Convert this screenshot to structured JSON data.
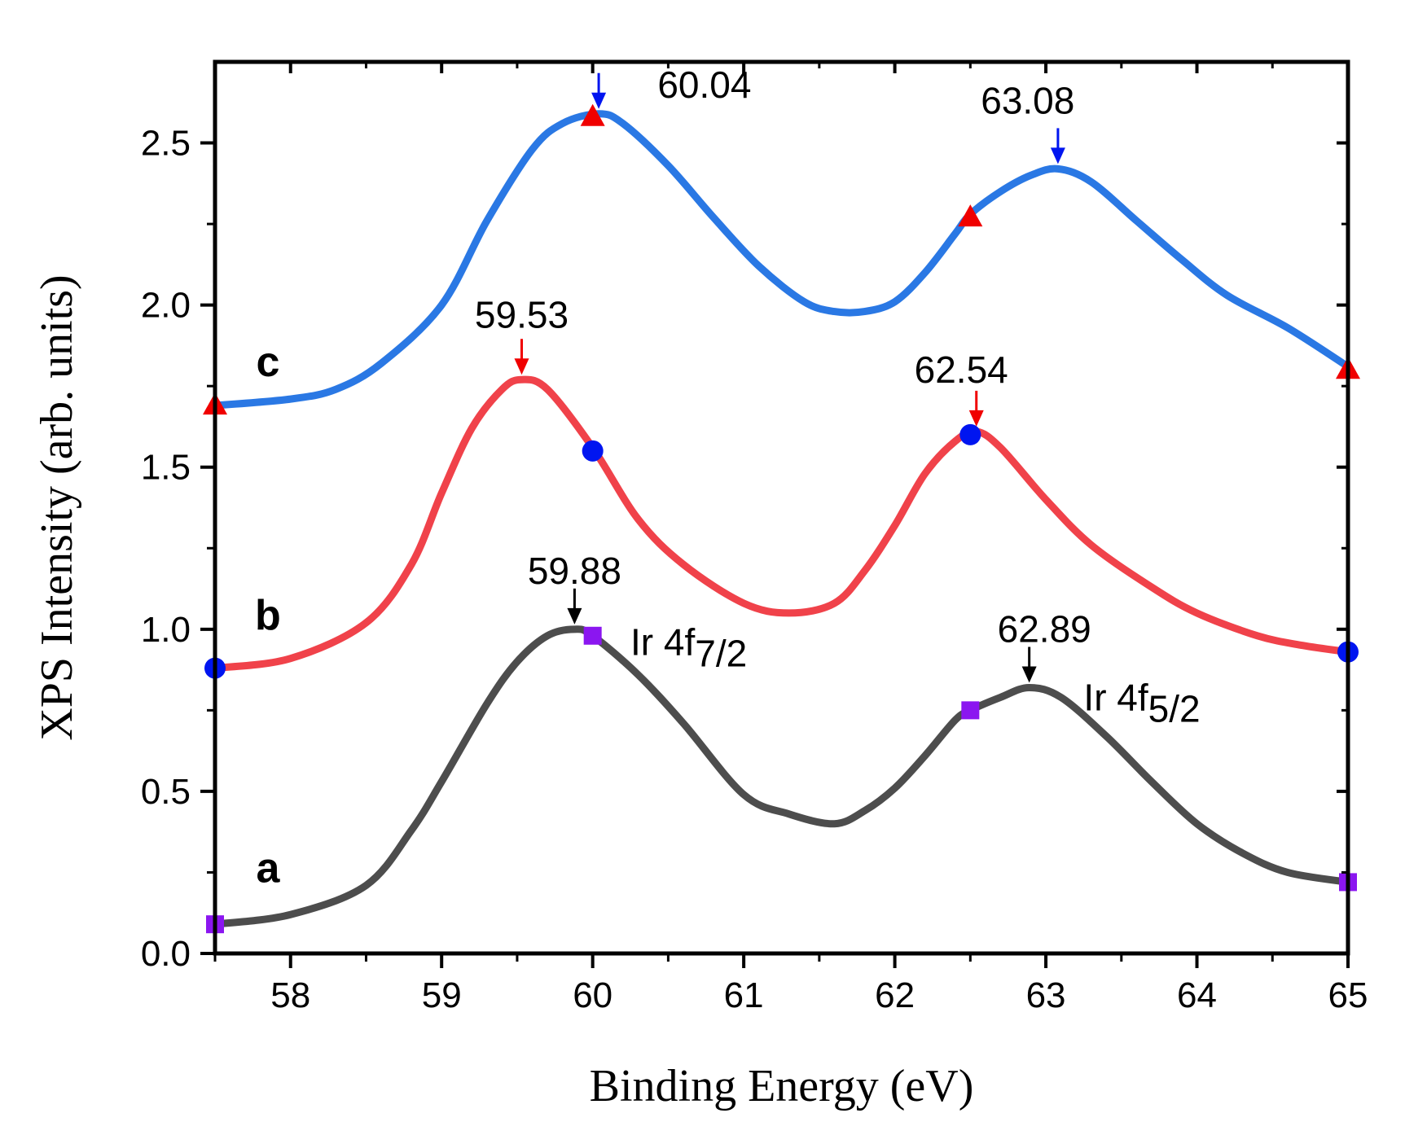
{
  "chart_data": {
    "type": "line",
    "xlabel": "Binding Energy (eV)",
    "ylabel": "XPS Intensity  (arb. units)",
    "xlim": [
      57.5,
      65
    ],
    "ylim": [
      0,
      2.75
    ],
    "xticks": [
      58,
      59,
      60,
      61,
      62,
      63,
      64,
      65
    ],
    "xtick_labels": [
      "58",
      "59",
      "60",
      "61",
      "62",
      "63",
      "64",
      "65"
    ],
    "yticks": [
      0,
      0.5,
      1.0,
      1.5,
      2.0,
      2.5
    ],
    "ytick_labels": [
      "0.0",
      "0.5",
      "1.0",
      "1.5",
      "2.0",
      "2.5"
    ],
    "series": [
      {
        "name": "a",
        "label": "a",
        "color": "#4d4d4d",
        "marker": "square",
        "marker_color": "#8b16f0",
        "label_pos": [
          57.85,
          0.22
        ],
        "x": [
          57.5,
          58.0,
          58.5,
          58.8,
          59.0,
          59.3,
          59.5,
          59.7,
          59.88,
          60.0,
          60.3,
          60.6,
          61.0,
          61.3,
          61.6,
          61.8,
          62.0,
          62.2,
          62.4,
          62.5,
          62.7,
          62.89,
          63.1,
          63.4,
          63.7,
          64.0,
          64.3,
          64.6,
          65.0
        ],
        "y": [
          0.09,
          0.12,
          0.21,
          0.38,
          0.53,
          0.77,
          0.9,
          0.98,
          1.0,
          0.98,
          0.86,
          0.71,
          0.49,
          0.43,
          0.4,
          0.44,
          0.51,
          0.61,
          0.72,
          0.75,
          0.79,
          0.82,
          0.79,
          0.67,
          0.53,
          0.4,
          0.31,
          0.25,
          0.22
        ],
        "markers_x": [
          57.5,
          60.0,
          62.5,
          65.0
        ],
        "markers_y": [
          0.09,
          0.98,
          0.75,
          0.22
        ],
        "peaks": [
          {
            "x": 59.88,
            "y": 1.0,
            "label": "59.88",
            "color": "#000000",
            "label_x": 59.88,
            "label_y": 1.14
          },
          {
            "x": 62.89,
            "y": 0.82,
            "label": "62.89",
            "color": "#000000",
            "label_x": 62.99,
            "label_y": 0.96
          }
        ]
      },
      {
        "name": "b",
        "label": "b",
        "color": "#f0424a",
        "marker": "circle",
        "marker_color": "#0015f0",
        "label_pos": [
          57.85,
          1.0
        ],
        "x": [
          57.5,
          58.0,
          58.5,
          58.8,
          59.0,
          59.2,
          59.4,
          59.53,
          59.7,
          60.0,
          60.3,
          60.6,
          61.0,
          61.3,
          61.6,
          61.8,
          62.0,
          62.2,
          62.4,
          62.54,
          62.7,
          63.0,
          63.3,
          63.7,
          64.0,
          64.4,
          64.7,
          65.0
        ],
        "y": [
          0.88,
          0.91,
          1.02,
          1.2,
          1.42,
          1.62,
          1.74,
          1.77,
          1.74,
          1.56,
          1.34,
          1.2,
          1.08,
          1.05,
          1.08,
          1.18,
          1.32,
          1.48,
          1.58,
          1.61,
          1.56,
          1.4,
          1.26,
          1.13,
          1.05,
          0.98,
          0.95,
          0.93
        ],
        "markers_x": [
          57.5,
          60.0,
          62.5,
          65.0
        ],
        "markers_y": [
          0.88,
          1.55,
          1.6,
          0.93
        ],
        "peaks": [
          {
            "x": 59.53,
            "y": 1.77,
            "label": "59.53",
            "color": "#f00000",
            "label_x": 59.53,
            "label_y": 1.93
          },
          {
            "x": 62.54,
            "y": 1.61,
            "label": "62.54",
            "color": "#f00000",
            "label_x": 62.44,
            "label_y": 1.76
          }
        ]
      },
      {
        "name": "c",
        "label": "c",
        "color": "#2a78e4",
        "marker": "triangle",
        "marker_color": "#f00000",
        "label_pos": [
          57.85,
          1.78
        ],
        "x": [
          57.5,
          58.0,
          58.3,
          58.6,
          59.0,
          59.3,
          59.6,
          59.8,
          60.04,
          60.2,
          60.5,
          60.8,
          61.1,
          61.4,
          61.6,
          61.8,
          62.0,
          62.2,
          62.4,
          62.5,
          62.7,
          62.9,
          63.08,
          63.3,
          63.6,
          63.9,
          64.2,
          64.6,
          65.0
        ],
        "y": [
          1.69,
          1.71,
          1.74,
          1.82,
          2.0,
          2.26,
          2.48,
          2.56,
          2.59,
          2.56,
          2.43,
          2.27,
          2.12,
          2.01,
          1.98,
          1.98,
          2.01,
          2.1,
          2.22,
          2.28,
          2.35,
          2.4,
          2.42,
          2.38,
          2.26,
          2.14,
          2.03,
          1.93,
          1.81
        ],
        "markers_x": [
          57.5,
          60.0,
          62.5,
          65.0
        ],
        "markers_y": [
          1.69,
          2.58,
          2.27,
          1.8
        ],
        "peaks": [
          {
            "x": 60.04,
            "y": 2.59,
            "label": "60.04",
            "color": "#0015f0",
            "label_x": 60.74,
            "label_y": 2.64
          },
          {
            "x": 63.08,
            "y": 2.42,
            "label": "63.08",
            "color": "#0015f0",
            "label_x": 62.88,
            "label_y": 2.59
          }
        ]
      }
    ],
    "annotations": [
      {
        "text": "Ir 4f",
        "sub": "7/2",
        "x": 60.25,
        "y": 0.92
      },
      {
        "text": "Ir 4f",
        "sub": "5/2",
        "x": 63.25,
        "y": 0.75
      }
    ]
  }
}
